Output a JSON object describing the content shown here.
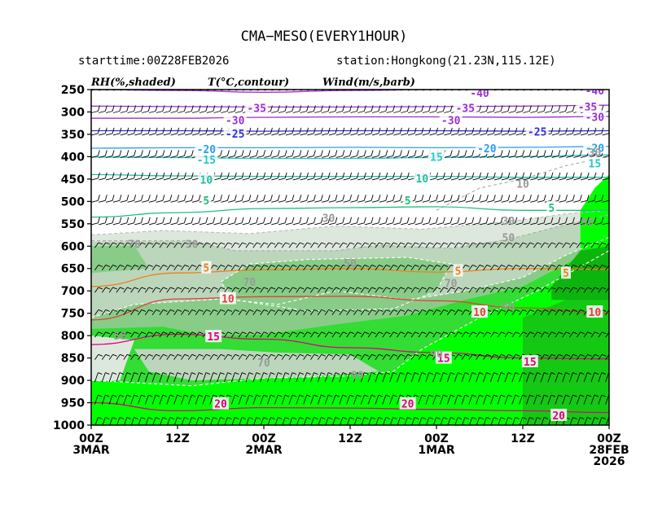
{
  "chart_data": {
    "type": "time-height cross section (shaded RH, temperature contours, wind barbs)",
    "title": "CMA−MESO(EVERY1HOUR)",
    "starttime_label": "starttime:00Z28FEB2026",
    "station_label": "station:Hongkong(21.23N,115.12E)",
    "legend_headers": [
      "RH(%,shaded)",
      "T(°C,contour)",
      "Wind(m/s,barb)"
    ],
    "y_axis": {
      "type": "pressure (hPa)",
      "range": [
        250,
        1000
      ],
      "ticks": [
        "250",
        "300",
        "350",
        "400",
        "450",
        "500",
        "550",
        "600",
        "650",
        "700",
        "750",
        "800",
        "850",
        "900",
        "950",
        "1000"
      ]
    },
    "x_axis": {
      "range_hours_from_left": [
        0,
        72
      ],
      "ticks": [
        {
          "hour": 0,
          "lines": [
            "00Z",
            "3MAR"
          ]
        },
        {
          "hour": 12,
          "lines": [
            "12Z"
          ]
        },
        {
          "hour": 24,
          "lines": [
            "00Z",
            "2MAR"
          ]
        },
        {
          "hour": 36,
          "lines": [
            "12Z"
          ]
        },
        {
          "hour": 48,
          "lines": [
            "00Z",
            "1MAR"
          ]
        },
        {
          "hour": 60,
          "lines": [
            "12Z"
          ]
        },
        {
          "hour": 72,
          "lines": [
            "00Z",
            "28FEB",
            "2026"
          ]
        }
      ]
    },
    "rh_colors": {
      "gt90": "#00ff00",
      "80_90": "#33dd33",
      "70_80": "#88cc88",
      "60_70": "#bcd6bc",
      "50_60": "#dde8dd",
      "lt50": "#ffffff"
    },
    "temperature_contours": [
      {
        "label": "-40",
        "color": "#9b30d0",
        "pressure": [
          250,
          252,
          256,
          252,
          250,
          250,
          248
        ]
      },
      {
        "label": "-35",
        "color": "#9b30d0",
        "pressure": [
          287,
          288,
          289,
          289,
          288,
          287,
          285
        ]
      },
      {
        "label": "-30",
        "color": "#9b30d0",
        "pressure": [
          314,
          314,
          312,
          311,
          311,
          312,
          310
        ]
      },
      {
        "label": "-25",
        "color": "#3030e0",
        "pressure": [
          342,
          342,
          343,
          342,
          342,
          343,
          342
        ]
      },
      {
        "label": "-20",
        "color": "#2aa0f0",
        "pressure": [
          381,
          380,
          380,
          379,
          380,
          379,
          377
        ]
      },
      {
        "label": "-15",
        "color": "#22c8c8",
        "pressure": [
          401,
          402,
          404,
          404,
          402,
          400,
          396
        ]
      },
      {
        "label": "10",
        "color": "#20c0a0",
        "pressure": [
          440,
          443,
          444,
          444,
          444,
          446,
          446
        ]
      },
      {
        "label": "5",
        "color": "#20c080",
        "pressure": [
          535,
          525,
          516,
          514,
          512,
          520,
          520
        ]
      },
      {
        "label": "5",
        "color": "#f07f1a",
        "pressure": [
          690,
          660,
          653,
          650,
          658,
          650,
          652
        ]
      },
      {
        "label": "10",
        "color": "#e04040",
        "pressure": [
          765,
          718,
          713,
          712,
          722,
          738,
          750
        ]
      },
      {
        "label": "15",
        "color": "#e00080",
        "pressure": [
          820,
          797,
          808,
          827,
          838,
          850,
          852
        ]
      },
      {
        "label": "20",
        "color": "#e00080",
        "pressure": [
          950,
          968,
          961,
          962,
          965,
          968,
          972
        ]
      }
    ],
    "contour_labels_shown": [
      {
        "text": "-40",
        "hour": 54,
        "p": 257
      },
      {
        "text": "-40",
        "hour": 70,
        "p": 252
      },
      {
        "text": "-35",
        "hour": 23,
        "p": 291
      },
      {
        "text": "-35",
        "hour": 52,
        "p": 291
      },
      {
        "text": "-35",
        "hour": 69,
        "p": 288
      },
      {
        "text": "-30",
        "hour": 20,
        "p": 318
      },
      {
        "text": "-30",
        "hour": 50,
        "p": 318
      },
      {
        "text": "-30",
        "hour": 70,
        "p": 311
      },
      {
        "text": "-25",
        "hour": 20,
        "p": 348
      },
      {
        "text": "-25",
        "hour": 62,
        "p": 344
      },
      {
        "text": "-20",
        "hour": 16,
        "p": 383
      },
      {
        "text": "-20",
        "hour": 55,
        "p": 381
      },
      {
        "text": "-20",
        "hour": 70,
        "p": 380
      },
      {
        "text": "-15",
        "hour": 16,
        "p": 407
      },
      {
        "text": "15",
        "hour": 48,
        "p": 400
      },
      {
        "text": "15",
        "hour": 70,
        "p": 415
      },
      {
        "text": "10",
        "hour": 16,
        "p": 451
      },
      {
        "text": "10",
        "hour": 46,
        "p": 448
      },
      {
        "text": "5",
        "hour": 16,
        "p": 498
      },
      {
        "text": "5",
        "hour": 44,
        "p": 498
      },
      {
        "text": "5",
        "hour": 64,
        "p": 514
      },
      {
        "text": "5",
        "hour": 16,
        "p": 648
      },
      {
        "text": "5",
        "hour": 51,
        "p": 655
      },
      {
        "text": "5",
        "hour": 66,
        "p": 660
      },
      {
        "text": "10",
        "hour": 19,
        "p": 717
      },
      {
        "text": "10",
        "hour": 54,
        "p": 747
      },
      {
        "text": "10",
        "hour": 70,
        "p": 747
      },
      {
        "text": "15",
        "hour": 17,
        "p": 802
      },
      {
        "text": "15",
        "hour": 49,
        "p": 850
      },
      {
        "text": "15",
        "hour": 61,
        "p": 858
      },
      {
        "text": "20",
        "hour": 18,
        "p": 952
      },
      {
        "text": "20",
        "hour": 44,
        "p": 952
      },
      {
        "text": "20",
        "hour": 65,
        "p": 978
      }
    ],
    "rh_labels_shown": [
      {
        "text": "30",
        "hour": 33,
        "p": 537
      },
      {
        "text": "30",
        "hour": 14,
        "p": 595
      },
      {
        "text": "30",
        "hour": 58,
        "p": 543
      },
      {
        "text": "50",
        "hour": 58,
        "p": 580
      },
      {
        "text": "10",
        "hour": 60,
        "p": 460
      },
      {
        "text": "30",
        "hour": 70,
        "p": 390
      },
      {
        "text": "90",
        "hour": 69,
        "p": 545
      },
      {
        "text": "70",
        "hour": 6,
        "p": 595
      },
      {
        "text": "50",
        "hour": 36,
        "p": 638
      },
      {
        "text": "70",
        "hour": 22,
        "p": 680
      },
      {
        "text": "70",
        "hour": 50,
        "p": 682
      },
      {
        "text": "50",
        "hour": 4,
        "p": 800
      },
      {
        "text": "70",
        "hour": 24,
        "p": 860
      },
      {
        "text": "90",
        "hour": 37,
        "p": 888
      },
      {
        "text": "90",
        "hour": 58,
        "p": 735
      },
      {
        "text": "90",
        "hour": 48,
        "p": 840
      }
    ]
  }
}
